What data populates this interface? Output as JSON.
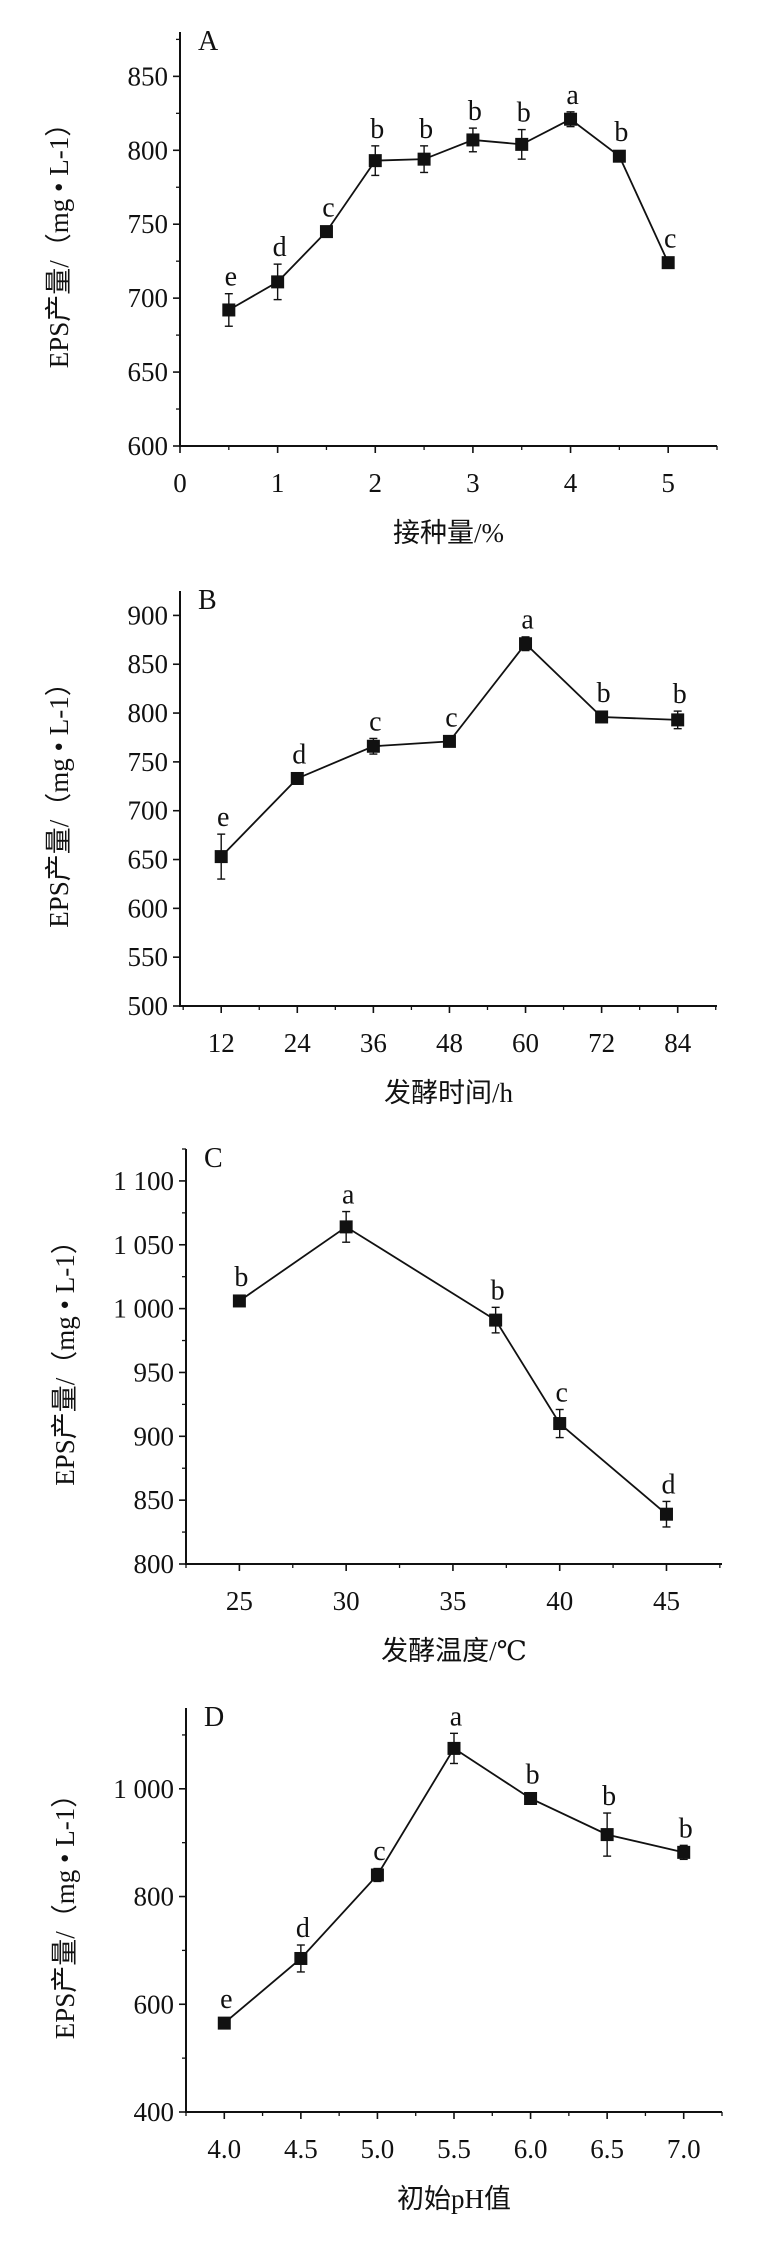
{
  "chart_data": [
    {
      "type": "line",
      "panel": "A",
      "xlabel": "接种量/%",
      "ylabel": "EPS产量/（mg • L-1）",
      "xlim": [
        0,
        5.5
      ],
      "ylim": [
        600,
        880
      ],
      "xticks": [
        0,
        1,
        2,
        3,
        4,
        5
      ],
      "xtick_labels": [
        "0",
        "1",
        "2",
        "3",
        "4",
        "5"
      ],
      "xminor_step": 0.5,
      "yticks": [
        600,
        650,
        700,
        750,
        800,
        850
      ],
      "ytick_labels": [
        "600",
        "650",
        "700",
        "750",
        "800",
        "850"
      ],
      "yminor_step": 25,
      "x": [
        0.5,
        1,
        1.5,
        2,
        2.5,
        3,
        3.5,
        4,
        4.5,
        5
      ],
      "values": [
        692,
        711,
        745,
        793,
        794,
        807,
        804,
        821,
        796,
        724
      ],
      "errors": [
        11,
        12,
        2,
        10,
        9,
        8,
        10,
        5,
        2,
        3
      ],
      "letters": [
        "e",
        "d",
        "c",
        "b",
        "b",
        "b",
        "b",
        "a",
        "b",
        "c"
      ]
    },
    {
      "type": "line",
      "panel": "B",
      "xlabel": "发酵时间/h",
      "ylabel": "EPS产量/（mg • L-1）",
      "xlim": [
        5.5,
        90.2
      ],
      "ylim": [
        500,
        925
      ],
      "xticks": [
        12,
        24,
        36,
        48,
        60,
        72,
        84
      ],
      "xtick_labels": [
        "12",
        "24",
        "36",
        "48",
        "60",
        "72",
        "84"
      ],
      "xminor_step": 6,
      "yticks": [
        500,
        550,
        600,
        650,
        700,
        750,
        800,
        850,
        900
      ],
      "ytick_labels": [
        "500",
        "550",
        "600",
        "650",
        "700",
        "750",
        "800",
        "850",
        "900"
      ],
      "yminor_step": 0,
      "x": [
        12,
        24,
        36,
        48,
        60,
        72,
        84
      ],
      "values": [
        653,
        733,
        766,
        771,
        871,
        796,
        793
      ],
      "errors": [
        23,
        2,
        8,
        5,
        7,
        2,
        9
      ],
      "letters": [
        "e",
        "d",
        "c",
        "c",
        "a",
        "b",
        "b"
      ]
    },
    {
      "type": "line",
      "panel": "C",
      "xlabel": "发酵温度/℃",
      "ylabel": "EPS产量/（mg • L-1）",
      "xlim": [
        22.5,
        47.6
      ],
      "ylim": [
        800,
        1125
      ],
      "xticks": [
        25,
        30,
        35,
        40,
        45
      ],
      "xtick_labels": [
        "25",
        "30",
        "35",
        "40",
        "45"
      ],
      "xminor_step": 2.5,
      "yticks": [
        800,
        850,
        900,
        950,
        1000,
        1050,
        1100
      ],
      "ytick_labels": [
        "800",
        "850",
        "900",
        "950",
        "1 000",
        "1 050",
        "1 100"
      ],
      "yminor_step": 25,
      "x": [
        25,
        30,
        37,
        40,
        45
      ],
      "values": [
        1006,
        1064,
        991,
        910,
        839
      ],
      "errors": [
        2,
        12,
        10,
        11,
        10
      ],
      "letters": [
        "b",
        "a",
        "b",
        "c",
        "d"
      ]
    },
    {
      "type": "line",
      "panel": "D",
      "xlabel": "初始pH值",
      "ylabel": "EPS产量/（mg • L-1）",
      "xlim": [
        3.75,
        7.25
      ],
      "ylim": [
        400,
        1150
      ],
      "xticks": [
        4.0,
        4.5,
        5.0,
        5.5,
        6.0,
        6.5,
        7.0
      ],
      "xtick_labels": [
        "4.0",
        "4.5",
        "5.0",
        "5.5",
        "6.0",
        "6.5",
        "7.0"
      ],
      "xminor_step": 0.25,
      "yticks": [
        400,
        600,
        800,
        1000
      ],
      "ytick_labels": [
        "400",
        "600",
        "800",
        "1 000"
      ],
      "yminor_step": 100,
      "x": [
        4.0,
        4.5,
        5.0,
        5.5,
        6.0,
        6.5,
        7.0
      ],
      "values": [
        565,
        685,
        840,
        1075,
        982,
        915,
        882
      ],
      "errors": [
        10,
        25,
        12,
        28,
        5,
        40,
        13
      ],
      "letters": [
        "e",
        "d",
        "c",
        "a",
        "b",
        "b",
        "b"
      ]
    }
  ]
}
